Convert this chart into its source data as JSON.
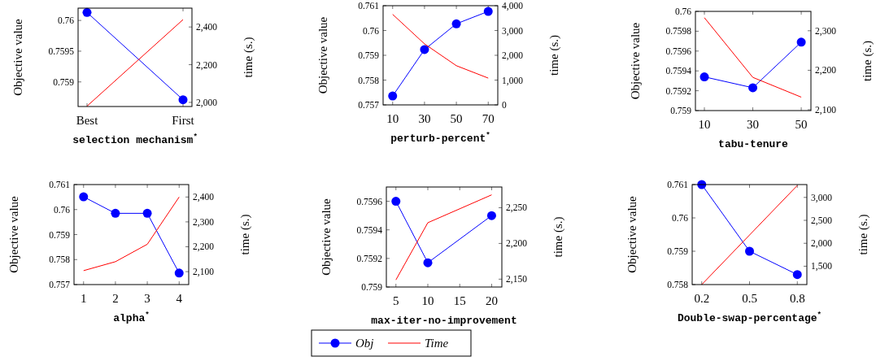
{
  "chart_data": [
    {
      "type": "line",
      "xlabel": "selection mechanism$^{*}$",
      "ylabel": "Objective value",
      "y2label": "time (s.)",
      "categories": [
        "Best",
        "First"
      ],
      "ylim": [
        0.7586,
        0.7602
      ],
      "yticks": [
        0.759,
        0.7595,
        0.76
      ],
      "y2lim": [
        1978,
        2500
      ],
      "y2ticks": [
        {
          "value": 2000,
          "label": "2,000"
        },
        {
          "value": 2200,
          "label": "2,200"
        },
        {
          "value": 2400,
          "label": "2,400"
        }
      ],
      "series": [
        {
          "color": "#0000ff",
          "marker": "circle",
          "values": [
            0.76013,
            0.75871
          ]
        },
        {
          "color": "#ff0000",
          "marker": "none",
          "axis": "y2",
          "values": [
            1980,
            2439
          ]
        }
      ]
    },
    {
      "type": "line",
      "xlabel": "perturb-percent$^{*}$",
      "ylabel": "Objective value",
      "y2label": "time (s.)",
      "x": [
        10,
        30,
        50,
        70
      ],
      "xlim": [
        4,
        76
      ],
      "xticks": [
        10,
        30,
        50,
        70
      ],
      "ylim": [
        0.757,
        0.761
      ],
      "yticks": [
        0.757,
        0.758,
        0.759,
        0.76,
        0.761
      ],
      "y2lim": [
        0,
        4000
      ],
      "y2ticks": [
        0,
        {
          "value": 1000,
          "label": "1,000"
        },
        {
          "value": 2000,
          "label": "2,000"
        },
        {
          "value": 3000,
          "label": "3,000"
        },
        {
          "value": 4000,
          "label": "4,000"
        }
      ],
      "series": [
        {
          "color": "#0000ff",
          "marker": "circle",
          "values": [
            0.75736,
            0.75923,
            0.76027,
            0.76077
          ]
        },
        {
          "color": "#ff0000",
          "marker": "none",
          "axis": "y2",
          "values": [
            3650,
            2460,
            1580,
            1080
          ]
        }
      ]
    },
    {
      "type": "line",
      "xlabel": "tabu-tenure",
      "ylabel": "Objective value",
      "y2label": "time (s.)",
      "x": [
        10,
        30,
        50
      ],
      "xlim": [
        6.3,
        54
      ],
      "xticks": [
        10,
        30,
        50
      ],
      "ylim": [
        0.759,
        0.76
      ],
      "yticks": [
        0.759,
        0.7592,
        0.7594,
        0.7596,
        0.7598,
        0.76
      ],
      "y2lim": [
        2098,
        2349
      ],
      "y2ticks": [
        {
          "value": 2100,
          "label": "2,100"
        },
        {
          "value": 2200,
          "label": "2,200"
        },
        {
          "value": 2300,
          "label": "2,300"
        }
      ],
      "series": [
        {
          "color": "#0000ff",
          "marker": "circle",
          "values": [
            0.75934,
            0.75923,
            0.75969
          ]
        },
        {
          "color": "#ff0000",
          "marker": "none",
          "axis": "y2",
          "values": [
            2333,
            2182,
            2132
          ]
        }
      ]
    },
    {
      "type": "line",
      "xlabel": "alpha$^{*}$",
      "ylabel": "Objective value",
      "y2label": "time (s.)",
      "x": [
        1,
        2,
        3,
        4
      ],
      "xlim": [
        0.7,
        4.3
      ],
      "xticks": [
        1,
        2,
        3,
        4
      ],
      "ylim": [
        0.757,
        0.761
      ],
      "yticks": [
        0.757,
        0.758,
        0.759,
        0.76,
        0.761
      ],
      "y2lim": [
        2048,
        2450
      ],
      "y2ticks": [
        {
          "value": 2100,
          "label": "2,100"
        },
        {
          "value": 2200,
          "label": "2,200"
        },
        {
          "value": 2300,
          "label": "2,300"
        },
        {
          "value": 2400,
          "label": "2,400"
        }
      ],
      "series": [
        {
          "color": "#0000ff",
          "marker": "circle",
          "values": [
            0.76051,
            0.75985,
            0.75985,
            0.75746
          ]
        },
        {
          "color": "#ff0000",
          "marker": "none",
          "axis": "y2",
          "values": [
            2104,
            2140,
            2210,
            2400
          ]
        }
      ]
    },
    {
      "type": "line",
      "xlabel": "max-iter-no-improvement",
      "ylabel": "Objective value",
      "y2label": "time (s.)",
      "x": [
        5,
        10,
        20
      ],
      "xlim": [
        3.5,
        21.6
      ],
      "xticks": [
        5,
        10,
        15,
        20
      ],
      "ylim": [
        0.759,
        0.7597
      ],
      "yticks": [
        0.759,
        0.7592,
        0.7594,
        0.7596
      ],
      "y2lim": [
        2139,
        2279
      ],
      "y2ticks": [
        {
          "value": 2150,
          "label": "2,150"
        },
        {
          "value": 2200,
          "label": "2,200"
        },
        {
          "value": 2250,
          "label": "2,250"
        }
      ],
      "legend": "bottom",
      "series": [
        {
          "name": "Obj",
          "color": "#0000ff",
          "marker": "circle",
          "values": [
            0.7596,
            0.75917,
            0.7595
          ]
        },
        {
          "name": "Time",
          "color": "#ff0000",
          "marker": "none",
          "axis": "y2",
          "values": [
            2149,
            2229,
            2268
          ]
        }
      ]
    },
    {
      "type": "line",
      "xlabel": "Double-swap-percentage$^{*}$",
      "ylabel": "Objective value",
      "y2label": "time (s.)",
      "x": [
        0.2,
        0.5,
        0.8
      ],
      "xlim": [
        0.14,
        0.86
      ],
      "xticks": [
        0.2,
        0.5,
        0.8
      ],
      "ylim": [
        0.758,
        0.761
      ],
      "yticks": [
        0.758,
        0.759,
        0.76,
        0.761
      ],
      "y2lim": [
        1100,
        3280
      ],
      "y2ticks": [
        {
          "value": 1500,
          "label": "1,500"
        },
        {
          "value": 2000,
          "label": "2,000"
        },
        {
          "value": 2500,
          "label": "2,500"
        },
        {
          "value": 3000,
          "label": "3,000"
        }
      ],
      "series": [
        {
          "color": "#0000ff",
          "marker": "circle",
          "values": [
            0.761,
            0.759,
            0.7583
          ]
        },
        {
          "color": "#ff0000",
          "marker": "none",
          "axis": "y2",
          "values": [
            1100,
            2180,
            3260
          ]
        }
      ]
    }
  ]
}
